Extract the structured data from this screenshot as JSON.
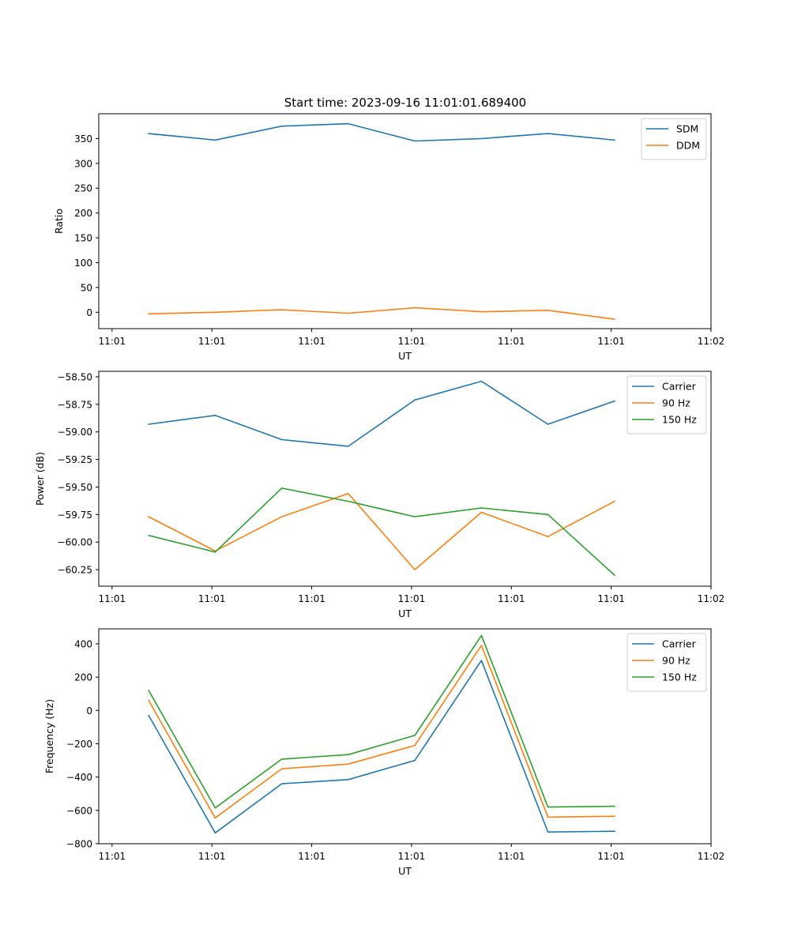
{
  "title": "Start time: 2023-09-16 11:01:01.689400",
  "colors": {
    "blue": "#1f77b4",
    "orange": "#ff7f0e",
    "green": "#2ca02c"
  },
  "chart_data": [
    {
      "type": "line",
      "title": "Start time: 2023-09-16 11:01:01.689400",
      "xlabel": "UT",
      "ylabel": "Ratio",
      "xlim": [
        0,
        9.2
      ],
      "ylim": [
        -33,
        400
      ],
      "x": [
        0.75,
        1.75,
        2.75,
        3.75,
        4.75,
        5.75,
        6.75,
        7.75
      ],
      "x_ticks": [
        0.2,
        1.7,
        3.2,
        4.7,
        6.2,
        7.7,
        9.2
      ],
      "x_tick_labels": [
        "11:01",
        "11:01",
        "11:01",
        "11:01",
        "11:01",
        "11:01",
        "11:02"
      ],
      "y_ticks": [
        0,
        50,
        100,
        150,
        200,
        250,
        300,
        350
      ],
      "y_tick_labels": [
        "0",
        "50",
        "100",
        "150",
        "200",
        "250",
        "300",
        "350"
      ],
      "legend": "top-right",
      "series": [
        {
          "name": "SDM",
          "color": "#1f77b4",
          "values": [
            360,
            347,
            375,
            380,
            345,
            350,
            360,
            347
          ]
        },
        {
          "name": "DDM",
          "color": "#ff7f0e",
          "values": [
            -3,
            0,
            5,
            -2,
            9,
            1,
            4,
            -14
          ]
        }
      ]
    },
    {
      "type": "line",
      "title": "",
      "xlabel": "UT",
      "ylabel": "Power (dB)",
      "xlim": [
        0,
        9.2
      ],
      "ylim": [
        -60.4,
        -58.45
      ],
      "x": [
        0.75,
        1.75,
        2.75,
        3.75,
        4.75,
        5.75,
        6.75,
        7.75
      ],
      "x_ticks": [
        0.2,
        1.7,
        3.2,
        4.7,
        6.2,
        7.7,
        9.2
      ],
      "x_tick_labels": [
        "11:01",
        "11:01",
        "11:01",
        "11:01",
        "11:01",
        "11:01",
        "11:02"
      ],
      "y_ticks": [
        -60.25,
        -60.0,
        -59.75,
        -59.5,
        -59.25,
        -59.0,
        -58.75,
        -58.5
      ],
      "y_tick_labels": [
        "−60.25",
        "−60.00",
        "−59.75",
        "−59.50",
        "−59.25",
        "−59.00",
        "−58.75",
        "−58.50"
      ],
      "legend": "top-right",
      "series": [
        {
          "name": "Carrier",
          "color": "#1f77b4",
          "values": [
            -58.93,
            -58.85,
            -59.07,
            -59.13,
            -58.71,
            -58.54,
            -58.93,
            -58.72
          ]
        },
        {
          "name": "90 Hz",
          "color": "#ff7f0e",
          "values": [
            -59.77,
            -60.08,
            -59.77,
            -59.56,
            -60.25,
            -59.73,
            -59.95,
            -59.63
          ]
        },
        {
          "name": "150 Hz",
          "color": "#2ca02c",
          "values": [
            -59.94,
            -60.09,
            -59.51,
            -59.63,
            -59.77,
            -59.69,
            -59.75,
            -60.3
          ]
        }
      ]
    },
    {
      "type": "line",
      "title": "",
      "xlabel": "UT",
      "ylabel": "Frequency (Hz)",
      "xlim": [
        0,
        9.2
      ],
      "ylim": [
        -800,
        490
      ],
      "x": [
        0.75,
        1.75,
        2.75,
        3.75,
        4.75,
        5.75,
        6.75,
        7.75
      ],
      "x_ticks": [
        0.2,
        1.7,
        3.2,
        4.7,
        6.2,
        7.7,
        9.2
      ],
      "x_tick_labels": [
        "11:01",
        "11:01",
        "11:01",
        "11:01",
        "11:01",
        "11:01",
        "11:02"
      ],
      "y_ticks": [
        -800,
        -600,
        -400,
        -200,
        0,
        200,
        400
      ],
      "y_tick_labels": [
        "−800",
        "−600",
        "−400",
        "−200",
        "0",
        "200",
        "400"
      ],
      "legend": "top-right",
      "series": [
        {
          "name": "Carrier",
          "color": "#1f77b4",
          "values": [
            -30,
            -735,
            -440,
            -415,
            -300,
            300,
            -730,
            -725
          ]
        },
        {
          "name": "90 Hz",
          "color": "#ff7f0e",
          "values": [
            60,
            -645,
            -350,
            -322,
            -210,
            390,
            -640,
            -635
          ]
        },
        {
          "name": "150 Hz",
          "color": "#2ca02c",
          "values": [
            120,
            -585,
            -292,
            -265,
            -150,
            450,
            -580,
            -575
          ]
        }
      ]
    }
  ]
}
